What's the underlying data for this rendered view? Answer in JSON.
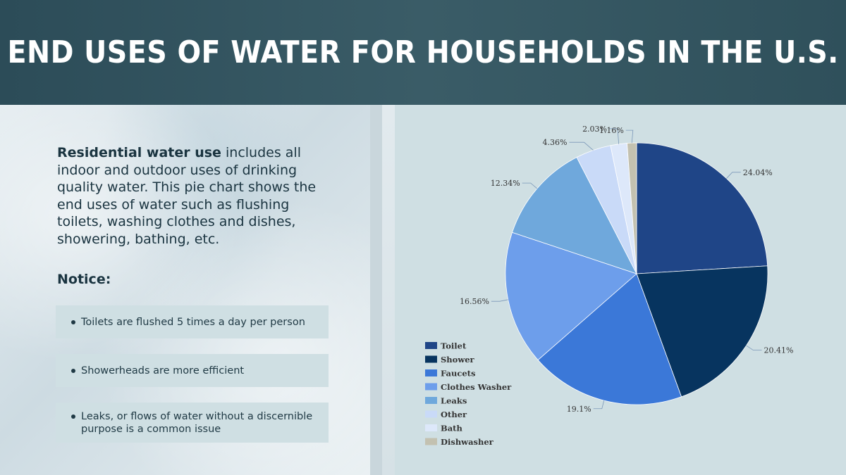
{
  "header": {
    "title": "END USES OF WATER FOR HOUSEHOLDS IN THE U.S."
  },
  "intro": {
    "bold": "Residential water use",
    "rest": " includes all indoor and outdoor uses of drinking quality water. This pie chart shows the end uses of water such as flushing toilets, washing clothes and dishes, showering, bathing, etc."
  },
  "notice": {
    "heading": "Notice:",
    "items": [
      "Toilets are flushed 5 times a day per person",
      "Showerheads are more efficient",
      "Leaks, or flows of water without a discernible purpose is a common issue"
    ]
  },
  "chart_data": {
    "type": "pie",
    "title": "",
    "legend_position": "bottom-left",
    "categories": [
      "Toilet",
      "Shower",
      "Faucets",
      "Clothes Washer",
      "Leaks",
      "Other",
      "Bath",
      "Dishwasher"
    ],
    "values": [
      24.04,
      20.41,
      19.1,
      16.56,
      12.34,
      4.36,
      2.03,
      1.16
    ],
    "labels": [
      "24.04%",
      "20.41%",
      "19.1%",
      "16.56%",
      "12.34%",
      "4.36%",
      "2.03%",
      "1.16%"
    ],
    "colors": [
      "#1f4587",
      "#07345f",
      "#3b78d8",
      "#6d9eeb",
      "#6fa8dc",
      "#c9daf8",
      "#dde8fa",
      "#c3c1b0"
    ]
  }
}
